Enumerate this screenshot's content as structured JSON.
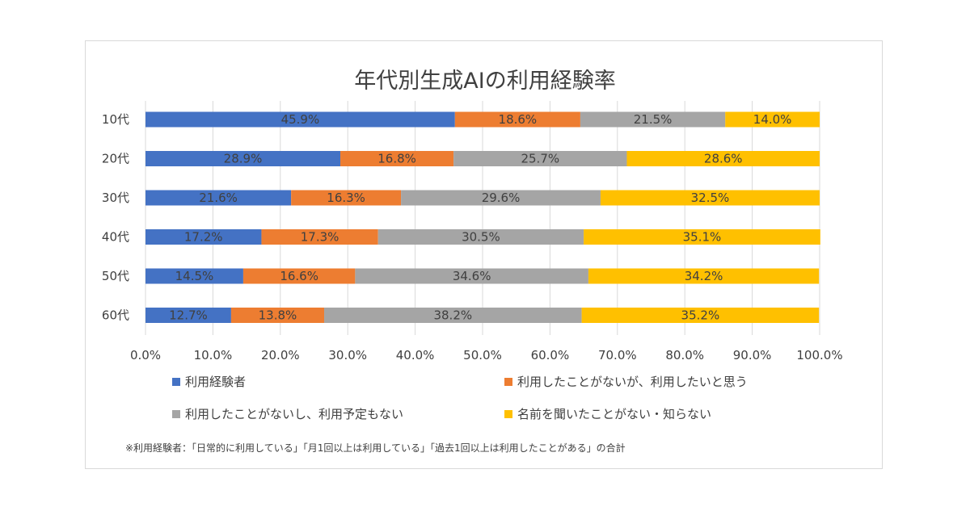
{
  "chart_data": {
    "type": "bar",
    "orientation": "horizontal",
    "stacked": true,
    "title": "年代別生成AIの利用経験率",
    "categories": [
      "10代",
      "20代",
      "30代",
      "40代",
      "50代",
      "60代"
    ],
    "series": [
      {
        "name": "利用経験者",
        "color": "#4472c4",
        "values": [
          45.9,
          28.9,
          21.6,
          17.2,
          14.5,
          12.7
        ],
        "labels": [
          "45.9%",
          "28.9%",
          "21.6%",
          "17.2%",
          "14.5%",
          "12.7%"
        ]
      },
      {
        "name": "利用したことがないが、利用したいと思う",
        "color": "#ed7d31",
        "values": [
          18.6,
          16.8,
          16.3,
          17.3,
          16.6,
          13.8
        ],
        "labels": [
          "18.6%",
          "16.8%",
          "16.3%",
          "17.3%",
          "16.6%",
          "13.8%"
        ]
      },
      {
        "name": "利用したことがないし、利用予定もない",
        "color": "#a5a5a5",
        "values": [
          21.5,
          25.7,
          29.6,
          30.5,
          34.6,
          38.2
        ],
        "labels": [
          "21.5%",
          "25.7%",
          "29.6%",
          "30.5%",
          "34.6%",
          "38.2%"
        ]
      },
      {
        "name": "名前を聞いたことがない・知らない",
        "color": "#ffc000",
        "values": [
          14.0,
          28.6,
          32.5,
          35.1,
          34.2,
          35.2
        ],
        "labels": [
          "14.0%",
          "28.6%",
          "32.5%",
          "35.1%",
          "34.2%",
          "35.2%"
        ]
      }
    ],
    "xlim": [
      0,
      100
    ],
    "xticks": [
      "0.0%",
      "10.0%",
      "20.0%",
      "30.0%",
      "40.0%",
      "50.0%",
      "60.0%",
      "70.0%",
      "80.0%",
      "90.0%",
      "100.0%"
    ],
    "grid": true,
    "legend_position": "bottom",
    "footnote": "※利用経験者：「日常的に利用している」「月1回以上は利用している」「過去1回以上は利用したことがある」の合計"
  }
}
